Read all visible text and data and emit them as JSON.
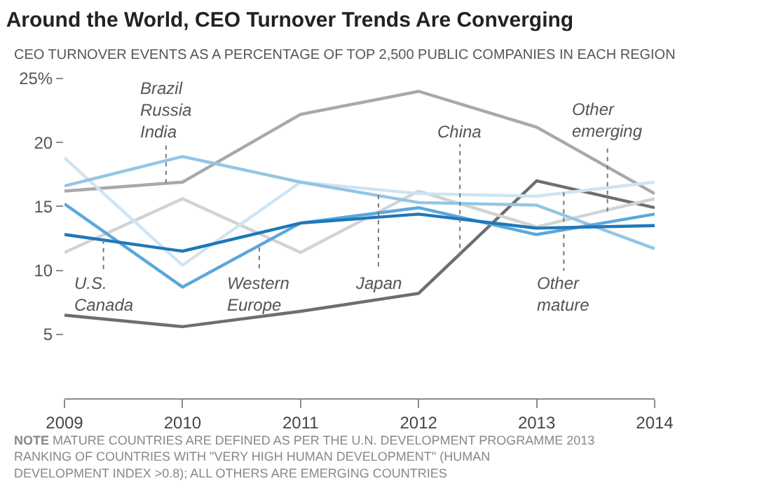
{
  "chart_data": {
    "type": "line",
    "title": "Around the World, CEO Turnover Trends Are Converging",
    "subtitle": "CEO TURNOVER EVENTS AS A PERCENTAGE OF TOP 2,500 PUBLIC COMPANIES IN EACH REGION",
    "x": [
      2009,
      2010,
      2011,
      2012,
      2013,
      2014
    ],
    "xlim": [
      2009,
      2014
    ],
    "xticks": [
      2009,
      2010,
      2011,
      2012,
      2013,
      2014
    ],
    "ylim": [
      0,
      25
    ],
    "yticks": [
      {
        "value": 5,
        "label": "5"
      },
      {
        "value": 10,
        "label": "10"
      },
      {
        "value": 15,
        "label": "15"
      },
      {
        "value": 20,
        "label": "20"
      },
      {
        "value": 25,
        "label": "25%"
      }
    ],
    "marker": "none",
    "line_style": "solid",
    "series": [
      {
        "color": "#6d6e71",
        "values": [
          6.5,
          5.6,
          6.8,
          8.2,
          17.0,
          14.9
        ]
      },
      {
        "color": "#a7a9ac",
        "values": [
          16.2,
          16.9,
          22.2,
          24.0,
          21.2,
          16.0
        ]
      },
      {
        "color": "#d1d3d4",
        "values": [
          11.4,
          15.6,
          11.4,
          16.2,
          13.4,
          15.6
        ]
      },
      {
        "color": "#cfe4f3",
        "values": [
          18.8,
          10.4,
          16.9,
          16.0,
          15.8,
          16.9
        ]
      },
      {
        "color": "#94c5e6",
        "values": [
          16.6,
          18.9,
          16.9,
          15.3,
          15.1,
          11.7
        ]
      },
      {
        "color": "#5ba7db",
        "values": [
          15.2,
          8.7,
          13.7,
          14.9,
          12.8,
          14.4
        ]
      },
      {
        "color": "#1f78b8",
        "values": [
          12.8,
          11.5,
          13.7,
          14.4,
          13.3,
          13.5
        ]
      }
    ],
    "annotations": [
      {
        "text": "Brazil\nRussia\nIndia",
        "x": 2009.86,
        "y": 16.8
      },
      {
        "text": "U.S.\nCanada",
        "x": 2009.33,
        "y": 12.4
      },
      {
        "text": "Western\nEurope",
        "x": 2010.65,
        "y": 11.8
      },
      {
        "text": "Japan",
        "x": 2011.66,
        "y": 15.9
      },
      {
        "text": "China",
        "x": 2012.35,
        "y": 11.1
      },
      {
        "text": "Other\nmature",
        "x": 2013.23,
        "y": 16.1
      },
      {
        "text": "Other\nemerging",
        "x": 2013.6,
        "y": 14.6
      },
      "NOTE MATURE COUNTRIES ARE DEFINED AS PER THE U.N. DEVELOPMENT PROGRAMME 2013 RANKING OF COUNTRIES WITH \"VERY HIGH HUMAN DEVELOPMENT\" (HUMAN DEVELOPMENT INDEX >0.8); ALL OTHERS ARE EMERGING COUNTRIES"
    ]
  }
}
